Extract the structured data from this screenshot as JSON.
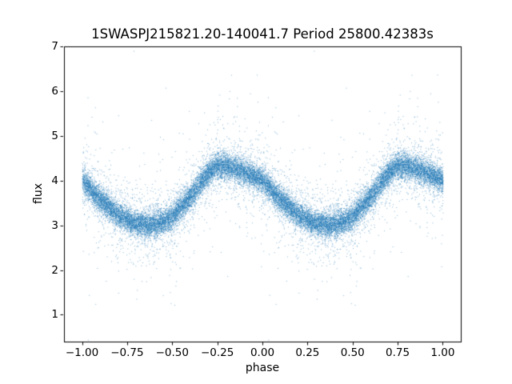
{
  "chart_data": {
    "type": "scatter",
    "title": "1SWASPJ215821.20-140041.7 Period 25800.42383s",
    "xlabel": "phase",
    "ylabel": "flux",
    "xlim": [
      -1.1,
      1.1
    ],
    "ylim": [
      0.4,
      7.0
    ],
    "grid": false,
    "legend": "none",
    "marker_color": "#1f77b4",
    "marker_size_px": 1,
    "marker_alpha": 0.55,
    "xticks": {
      "values": [
        -1.0,
        -0.75,
        -0.5,
        -0.25,
        0.0,
        0.25,
        0.5,
        0.75,
        1.0
      ],
      "labels": [
        "−1.00",
        "−0.75",
        "−0.50",
        "−0.25",
        "0.00",
        "0.25",
        "0.50",
        "0.75",
        "1.00"
      ]
    },
    "yticks": {
      "values": [
        1,
        2,
        3,
        4,
        5,
        6,
        7
      ],
      "labels": [
        "1",
        "2",
        "3",
        "4",
        "5",
        "6",
        "7"
      ]
    },
    "description": "Phase-folded light curve; each point plotted twice at phase and phase-1, dense band follows the trend curve with noise halo and sparse outliers up to ~6.7 and down to ~0.7",
    "trend": {
      "phase": [
        0.0,
        0.05,
        0.1,
        0.15,
        0.2,
        0.25,
        0.3,
        0.35,
        0.4,
        0.45,
        0.5,
        0.55,
        0.6,
        0.65,
        0.7,
        0.75,
        0.8,
        0.85,
        0.9,
        0.95,
        1.0
      ],
      "flux": [
        4.0,
        3.8,
        3.58,
        3.4,
        3.24,
        3.12,
        3.05,
        3.02,
        3.03,
        3.08,
        3.2,
        3.42,
        3.65,
        3.92,
        4.18,
        4.35,
        4.33,
        4.27,
        4.2,
        4.1,
        4.0
      ]
    },
    "generation": {
      "seed": 20231107,
      "points_per_cycle": 12000,
      "cycles_offsets": [
        0,
        -1
      ],
      "noise": {
        "core_sigma": 0.14,
        "mid_sigma": 0.4,
        "mid_frac": 0.15,
        "outlier_sigma": 1.0,
        "outlier_frac": 0.03
      }
    }
  }
}
